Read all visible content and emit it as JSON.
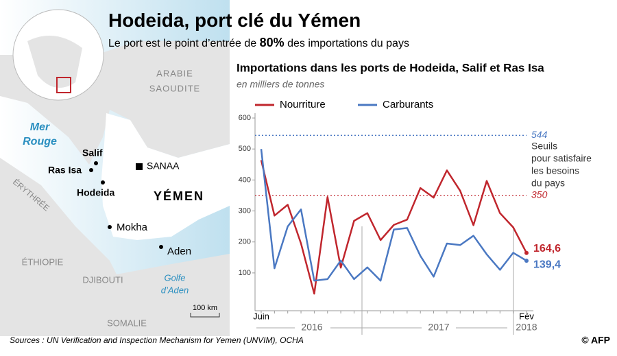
{
  "header": {
    "title": "Hodeida, port clé du Yémen",
    "subtitle": [
      "Le port est le point d’entrée de ",
      "80%",
      " des importations du pays"
    ]
  },
  "map": {
    "labels": [
      "ARABIE",
      "SAOUDITE",
      "Mer",
      "Rouge",
      "Salif",
      "Ras Isa",
      "Hodeida",
      "SANAA",
      "YÉMEN",
      "Mokha",
      "Aden",
      "ÉRYTHRÉE",
      "ÉTHIOPIE",
      "DJIBOUTI",
      "Golfe",
      "d’Aden",
      "SOMALIE"
    ],
    "scale": "100 km"
  },
  "chart_data": {
    "type": "line",
    "title": "Importations dans les ports de Hodeida, Salif et Ras Isa",
    "subtitle": "en milliers de tonnes",
    "categories": [
      "Juin",
      null,
      null,
      null,
      null,
      null,
      null,
      null,
      null,
      null,
      null,
      null,
      null,
      null,
      null,
      null,
      null,
      null,
      null,
      null,
      "Fév"
    ],
    "years": [
      "2016",
      "2017",
      "2018"
    ],
    "series": [
      {
        "name": "Nourriture",
        "color": "#c0262d",
        "values": [
          464,
          285,
          320,
          195,
          33,
          345,
          117,
          268,
          293,
          206,
          255,
          272,
          374,
          343,
          431,
          365,
          254,
          397,
          293,
          247,
          164.6
        ],
        "value_labels": [
          null,
          null,
          null,
          null,
          null,
          null,
          null,
          null,
          null,
          null,
          null,
          null,
          null,
          null,
          null,
          null,
          null,
          null,
          null,
          null,
          "164,6"
        ]
      },
      {
        "name": "Carburants",
        "color": "#4a78c2",
        "values": [
          500,
          115,
          250,
          305,
          75,
          80,
          140,
          80,
          118,
          75,
          240,
          245,
          155,
          88,
          195,
          190,
          220,
          160,
          110,
          165,
          139.4
        ],
        "value_labels": [
          null,
          null,
          null,
          null,
          null,
          null,
          null,
          null,
          null,
          null,
          null,
          null,
          null,
          null,
          null,
          null,
          null,
          null,
          null,
          null,
          "139,4"
        ]
      }
    ],
    "reference_lines": [
      {
        "value": 544,
        "color": "#4a78c2"
      },
      {
        "value": 350,
        "color": "#c0262d"
      }
    ],
    "annotation": [
      "Seuils",
      "pour satisfaire",
      "les besoins",
      "du pays"
    ],
    "ylim": [
      -22,
      620
    ],
    "yticks": [
      100,
      200,
      300,
      400,
      500,
      600
    ],
    "grid": false
  },
  "footer": {
    "source": "Sources : UN Verification and Inspection Mechanism for Yemen (UNVIM), OCHA",
    "credit": "© AFP"
  }
}
